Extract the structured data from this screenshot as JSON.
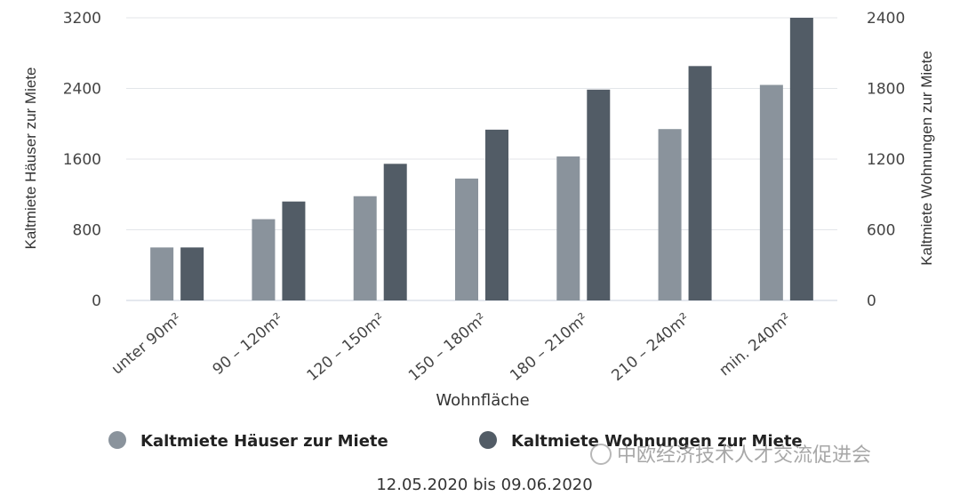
{
  "chart_data": {
    "type": "bar",
    "xlabel": "Wohnfläche",
    "categories": [
      "unter 90m²",
      "90 – 120m²",
      "120 – 150m²",
      "150 – 180m²",
      "180 – 210m²",
      "210 – 240m²",
      "min. 240m²"
    ],
    "y_left": {
      "label": "Kaltmiete Häuser zur Miete",
      "ticks": [
        "0",
        "800",
        "1600",
        "2400",
        "3200"
      ],
      "ylim": [
        0,
        3200
      ]
    },
    "y_right": {
      "label": "Kaltmiete Wohnungen zur Miete",
      "ticks": [
        "0",
        "600",
        "1200",
        "1800",
        "2400"
      ],
      "ylim": [
        0,
        2400
      ]
    },
    "series": [
      {
        "name": "Kaltmiete Häuser zur Miete",
        "axis": "left",
        "color": "#8a939c",
        "values": [
          600,
          920,
          1180,
          1380,
          1630,
          1940,
          2440
        ]
      },
      {
        "name": "Kaltmiete Wohnungen zur Miete",
        "axis": "right",
        "color": "#525c66",
        "values": [
          450,
          840,
          1160,
          1450,
          1790,
          1990,
          2400
        ]
      }
    ],
    "grid": true,
    "legend_position": "bottom"
  },
  "date_range": "12.05.2020 bis 09.06.2020",
  "watermark": "中欧经济技术人才交流促进会"
}
